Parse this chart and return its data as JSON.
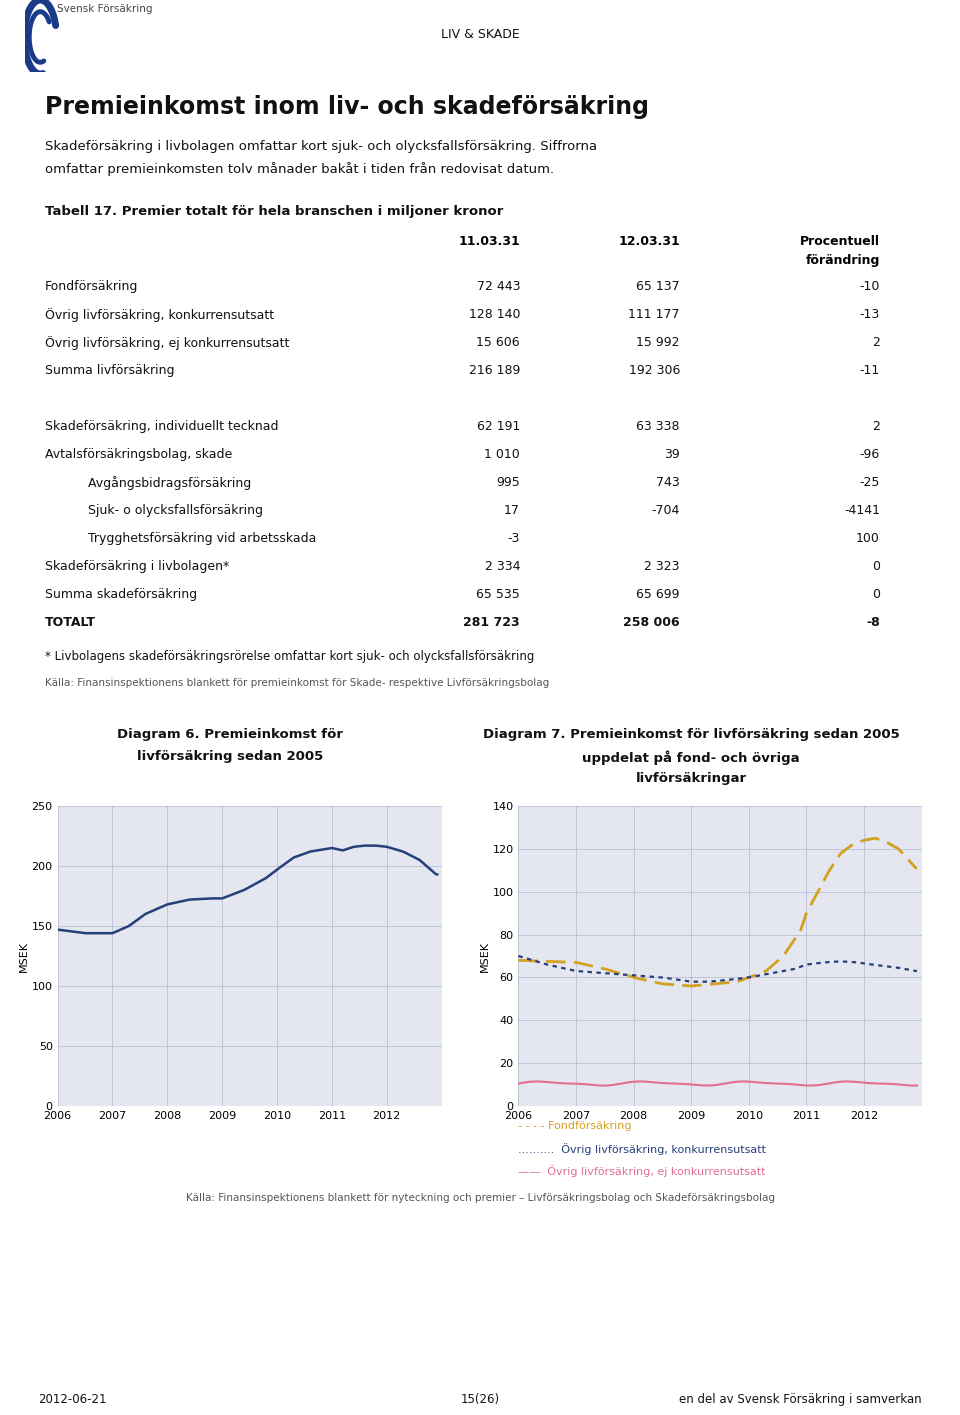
{
  "page_title": "LIV & SKADE",
  "main_title": "Premieinkomst inom liv- och skadeförsäkring",
  "subtitle_line1": "Skadeförsäkring i livbolagen omfattar kort sjuk- och olycksfallsförsäkring. Siffrorna",
  "subtitle_line2": "omfattar premieinkomsten tolv månader bakåt i tiden från redovisat datum.",
  "table_title": "Tabell 17. Premier totalt för hela branschen i miljoner kronor",
  "header_col2": "11.03.31",
  "header_col3": "12.03.31",
  "header_col4_line1": "Procentuell",
  "header_col4_line2": "förändring",
  "table_rows": [
    {
      "label": "Fondförsäkring",
      "v1": "72 443",
      "v2": "65 137",
      "pct": "-10",
      "indent": 0,
      "bold": false,
      "highlight": false,
      "sep_above": false
    },
    {
      "label": "Övrig livförsäkring, konkurrensutsatt",
      "v1": "128 140",
      "v2": "111 177",
      "pct": "-13",
      "indent": 0,
      "bold": false,
      "highlight": false,
      "sep_above": false
    },
    {
      "label": "Övrig livförsäkring, ej konkurrensutsatt",
      "v1": "15 606",
      "v2": "15 992",
      "pct": "2",
      "indent": 0,
      "bold": false,
      "highlight": false,
      "sep_above": false
    },
    {
      "label": "Summa livförsäkring",
      "v1": "216 189",
      "v2": "192 306",
      "pct": "-11",
      "indent": 0,
      "bold": false,
      "highlight": true,
      "sep_above": false
    },
    {
      "label": "",
      "v1": "",
      "v2": "",
      "pct": "",
      "indent": 0,
      "bold": false,
      "highlight": false,
      "sep_above": false
    },
    {
      "label": "Skadeförsäkring, individuellt tecknad",
      "v1": "62 191",
      "v2": "63 338",
      "pct": "2",
      "indent": 0,
      "bold": false,
      "highlight": false,
      "sep_above": false
    },
    {
      "label": "Avtalsförsäkringsbolag, skade",
      "v1": "1 010",
      "v2": "39",
      "pct": "-96",
      "indent": 0,
      "bold": false,
      "highlight": false,
      "sep_above": false
    },
    {
      "label": "  Avgångsbidragsförsäkring",
      "v1": "995",
      "v2": "743",
      "pct": "-25",
      "indent": 1,
      "bold": false,
      "highlight": false,
      "sep_above": false
    },
    {
      "label": "  Sjuk- o olycksfallsförsäkring",
      "v1": "17",
      "v2": "-704",
      "pct": "-4141",
      "indent": 1,
      "bold": false,
      "highlight": false,
      "sep_above": false
    },
    {
      "label": "  Trygghetsförsäkring vid arbetsskada",
      "v1": "-3",
      "v2": "",
      "pct": "100",
      "indent": 1,
      "bold": false,
      "highlight": false,
      "sep_above": false
    },
    {
      "label": "Skadeförsäkring i livbolagen*",
      "v1": "2 334",
      "v2": "2 323",
      "pct": "0",
      "indent": 0,
      "bold": false,
      "highlight": false,
      "sep_above": false
    },
    {
      "label": "Summa skadeförsäkring",
      "v1": "65 535",
      "v2": "65 699",
      "pct": "0",
      "indent": 0,
      "bold": false,
      "highlight": true,
      "sep_above": false
    },
    {
      "label": "TOTALT",
      "v1": "281 723",
      "v2": "258 006",
      "pct": "-8",
      "indent": 0,
      "bold": true,
      "highlight": false,
      "sep_above": true
    }
  ],
  "footnote1": "* Livbolagens skadeförsäkringsrörelse omfattar kort sjuk- och olycksfallsförsäkring",
  "footnote2": "Källa: Finansinspektionens blankett för premieinkomst för Skade- respektive Livförsäkringsbolag",
  "diag6_title_line1": "Diagram 6. Premieinkomst för",
  "diag6_title_line2": "livförsäkring sedan 2005",
  "diag7_title_line1": "Diagram 7. Premieinkomst för livförsäkring sedan 2005",
  "diag7_title_line2": "uppdelat på fond- och övriga",
  "diag7_title_line3": "livförsäkringar",
  "diag6_years": [
    2006,
    2007,
    2008,
    2009,
    2010,
    2011,
    2012
  ],
  "diag6_ylim": [
    0,
    250
  ],
  "diag6_yticks": [
    0,
    50,
    100,
    150,
    200,
    250
  ],
  "diag7_years": [
    2006,
    2007,
    2008,
    2009,
    2010,
    2011,
    2012
  ],
  "diag7_ylim": [
    0,
    140
  ],
  "diag7_yticks": [
    0,
    20,
    40,
    60,
    80,
    100,
    120,
    140
  ],
  "diag6_color": "#263f7a",
  "diag7_fond_color": "#d4a020",
  "diag7_konkurrens_color": "#263f7a",
  "diag7_ej_konkurrens_color": "#e07090",
  "footnote_charts": "Källa: Finansinspektionens blankett för nyteckning och premier – Livförsäkringsbolag och Skadeförsäkringsbolag",
  "footer_left": "2012-06-21",
  "footer_center": "15(26)",
  "footer_right": "en del av Svensk Försäkring i samverkan",
  "bg_color": "#ffffff",
  "table_highlight_color": "#c5c8de",
  "chart_bg_color": "#e4e6f0",
  "grid_color": "#9099bb"
}
